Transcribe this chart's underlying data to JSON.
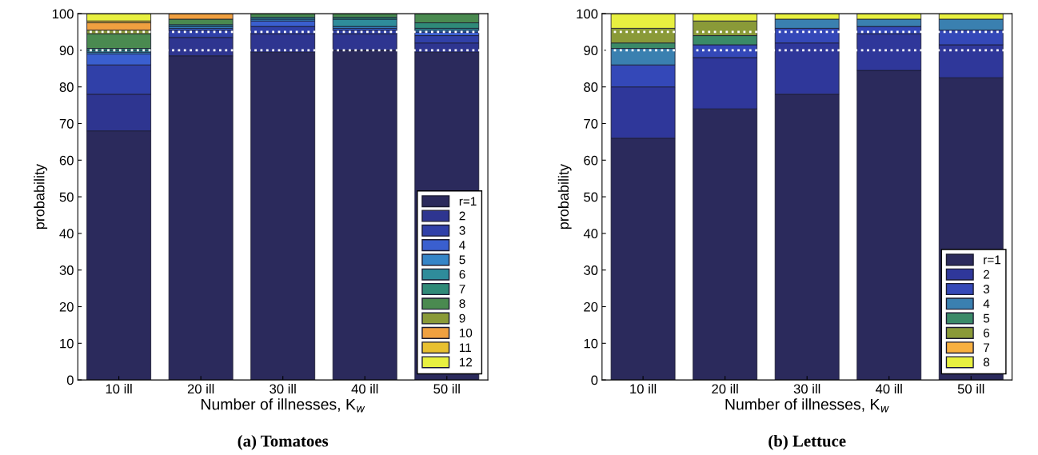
{
  "chart_data": [
    {
      "type": "bar",
      "stacked": true,
      "title": "(a) Tomatoes",
      "xlabel": "Number of illnesses, K$_{w}$",
      "ylabel": "probability",
      "categories": [
        "10 ill",
        "20 ill",
        "30 ill",
        "40 ill",
        "50 ill"
      ],
      "ylim": [
        0,
        100
      ],
      "yticks": [
        0,
        10,
        20,
        30,
        40,
        50,
        60,
        70,
        80,
        90,
        100
      ],
      "legend": "bottom right",
      "grid": false,
      "series": [
        {
          "name": "r=1",
          "color": "#2b2a5c",
          "values": [
            68,
            88.5,
            89.5,
            90,
            89.5
          ]
        },
        {
          "name": "2",
          "color": "#2e3590",
          "values": [
            10,
            5,
            5,
            4.5,
            2.5
          ]
        },
        {
          "name": "3",
          "color": "#3040a8",
          "values": [
            8,
            2,
            2,
            1,
            2
          ]
        },
        {
          "name": "4",
          "color": "#3a5fcf",
          "values": [
            3,
            0.5,
            1.5,
            0.5,
            1
          ]
        },
        {
          "name": "5",
          "color": "#3585c8",
          "values": [
            0.5,
            0.5,
            0.5,
            0.5,
            0.5
          ]
        },
        {
          "name": "6",
          "color": "#2f8c9b",
          "values": [
            0.5,
            0.5,
            0.5,
            2,
            0.5
          ]
        },
        {
          "name": "7",
          "color": "#2f8a78",
          "values": [
            0.5,
            0,
            0,
            0.5,
            1.5
          ]
        },
        {
          "name": "8",
          "color": "#4a8a50",
          "values": [
            4,
            1.5,
            1,
            1,
            2.5
          ]
        },
        {
          "name": "9",
          "color": "#8a9a38",
          "values": [
            1,
            0,
            0,
            0,
            0
          ]
        },
        {
          "name": "10",
          "color": "#f0a040",
          "values": [
            2,
            1.5,
            0,
            0,
            0
          ]
        },
        {
          "name": "11",
          "color": "#e8c030",
          "values": [
            0.5,
            0,
            0,
            0,
            0
          ]
        },
        {
          "name": "12",
          "color": "#e8f040",
          "values": [
            2,
            0,
            0,
            0,
            0
          ]
        }
      ],
      "ref_lines": [
        {
          "axis": "y",
          "value": 90,
          "color": "#ffffff",
          "line_style": "dotted"
        },
        {
          "axis": "y",
          "value": 95,
          "color": "#ffffff",
          "line_style": "dotted"
        }
      ]
    },
    {
      "type": "bar",
      "stacked": true,
      "title": "(b) Lettuce",
      "xlabel": "Number of illnesses, K$_{w}$",
      "ylabel": "probability",
      "categories": [
        "10 ill",
        "20 ill",
        "30 ill",
        "40 ill",
        "50 ill"
      ],
      "ylim": [
        0,
        100
      ],
      "yticks": [
        0,
        10,
        20,
        30,
        40,
        50,
        60,
        70,
        80,
        90,
        100
      ],
      "legend": "bottom right",
      "grid": false,
      "series": [
        {
          "name": "r=1",
          "color": "#2b2a5c",
          "values": [
            66,
            74,
            78,
            84.5,
            82.5
          ]
        },
        {
          "name": "2",
          "color": "#2f379a",
          "values": [
            14,
            14,
            14,
            10,
            9
          ]
        },
        {
          "name": "3",
          "color": "#3448b8",
          "values": [
            6,
            3.5,
            4,
            2,
            4
          ]
        },
        {
          "name": "4",
          "color": "#3a80b0",
          "values": [
            4.5,
            0,
            2.5,
            2,
            3
          ]
        },
        {
          "name": "5",
          "color": "#3a8a68",
          "values": [
            1.5,
            2.5,
            0,
            0,
            0
          ]
        },
        {
          "name": "6",
          "color": "#8a9a38",
          "values": [
            4,
            4,
            0,
            0,
            0
          ]
        },
        {
          "name": "7",
          "color": "#f8b040",
          "values": [
            0,
            0,
            0,
            0,
            0
          ]
        },
        {
          "name": "8",
          "color": "#e8f040",
          "values": [
            4,
            2,
            1.5,
            1.5,
            1.5
          ]
        }
      ],
      "ref_lines": [
        {
          "axis": "y",
          "value": 90,
          "color": "#ffffff",
          "line_style": "dotted"
        },
        {
          "axis": "y",
          "value": 95,
          "color": "#ffffff",
          "line_style": "dotted"
        }
      ]
    }
  ]
}
